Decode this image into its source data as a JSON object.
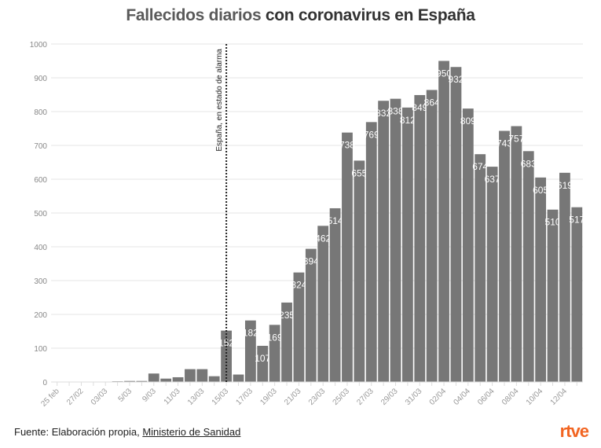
{
  "title": {
    "highlight": "Fallecidos diarios",
    "rest": " con coronavirus en España"
  },
  "source": {
    "prefix": "Fuente: Elaboración propia, ",
    "link": "Ministerio de Sanidad"
  },
  "logo": "rtve",
  "colors": {
    "bar": "#777777",
    "label": "#ffffff",
    "grid": "#e6e6e6",
    "logo": "#f26522"
  },
  "chart_data": {
    "type": "bar",
    "title": "Fallecidos diarios con coronavirus en España",
    "xlabel": "",
    "ylabel": "",
    "ylim": [
      0,
      1000
    ],
    "yticks": [
      0,
      100,
      200,
      300,
      400,
      500,
      600,
      700,
      800,
      900,
      1000
    ],
    "grid": true,
    "xtick_labels": [
      "25 feb",
      "",
      "27/02",
      "",
      "03/03",
      "",
      "5/03",
      "",
      "9/03",
      "",
      "11/03",
      "",
      "13/03",
      "",
      "15/03",
      "",
      "17/03",
      "",
      "19/03",
      "",
      "21/03",
      "",
      "23/03",
      "",
      "25/03",
      "",
      "27/03",
      "",
      "29/03",
      "",
      "31/03",
      "",
      "02/04",
      "",
      "04/04",
      "",
      "06/04",
      "",
      "08/04",
      "",
      "10/04",
      "",
      "12/04",
      ""
    ],
    "values": [
      0,
      0,
      0,
      0,
      0,
      2,
      3,
      3,
      25,
      10,
      14,
      38,
      38,
      17,
      152,
      22,
      182,
      107,
      169,
      235,
      324,
      394,
      462,
      514,
      738,
      655,
      769,
      832,
      838,
      812,
      849,
      864,
      950,
      932,
      809,
      674,
      637,
      743,
      757,
      683,
      605,
      510,
      619,
      517
    ],
    "data_labels_from_index": 14,
    "annotation": {
      "text": "España, en estado de alarma",
      "at_index": 14,
      "style": "dotted vertical line"
    }
  }
}
